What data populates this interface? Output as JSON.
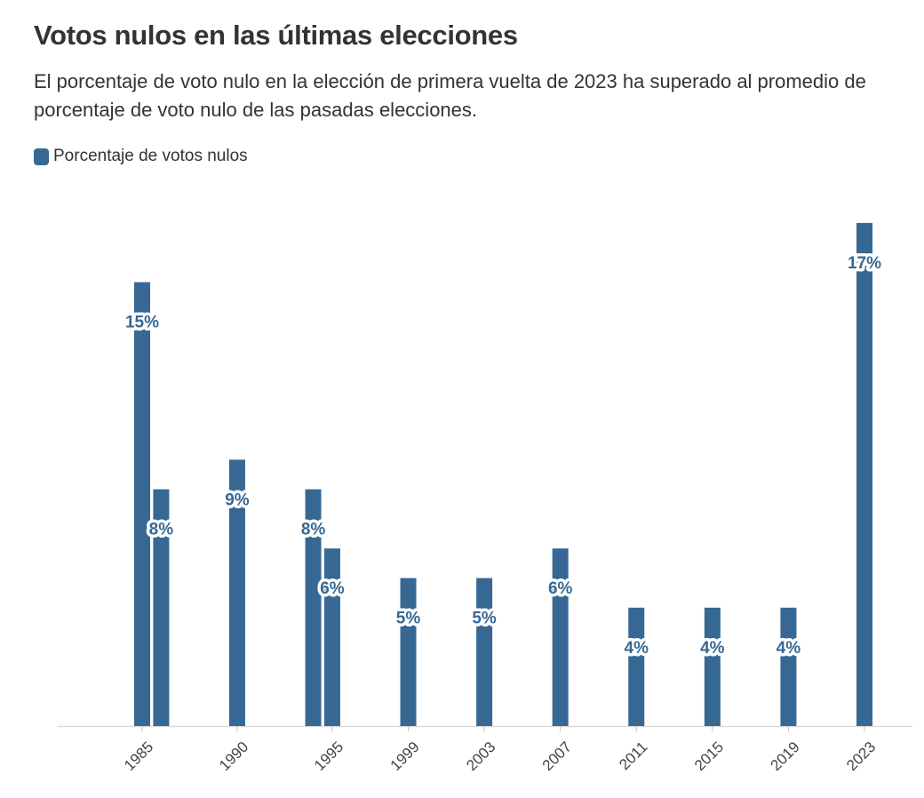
{
  "chart_data": {
    "type": "bar",
    "title": "Votos nulos en las últimas elecciones",
    "subtitle": "El porcentaje de voto nulo en la elección de primera vuelta de 2023 ha superado al promedio de porcentaje de voto nulo de las pasadas elecciones.",
    "legend": {
      "position": "top-left",
      "entries": [
        "Porcentaje de votos nulos"
      ]
    },
    "xlabel": "",
    "ylabel": "",
    "x_range": [
      1985,
      2023
    ],
    "ylim": [
      0,
      17
    ],
    "grid": false,
    "color": "#376893",
    "series": [
      {
        "name": "Porcentaje de votos nulos",
        "points": [
          {
            "x": 1985,
            "y": 15,
            "label": "15%"
          },
          {
            "x": 1986,
            "y": 8,
            "label": "8%"
          },
          {
            "x": 1990,
            "y": 9,
            "label": "9%"
          },
          {
            "x": 1994,
            "y": 8,
            "label": "8%"
          },
          {
            "x": 1995,
            "y": 6,
            "label": "6%"
          },
          {
            "x": 1999,
            "y": 5,
            "label": "5%"
          },
          {
            "x": 2003,
            "y": 5,
            "label": "5%"
          },
          {
            "x": 2007,
            "y": 6,
            "label": "6%"
          },
          {
            "x": 2011,
            "y": 4,
            "label": "4%"
          },
          {
            "x": 2015,
            "y": 4,
            "label": "4%"
          },
          {
            "x": 2019,
            "y": 4,
            "label": "4%"
          },
          {
            "x": 2023,
            "y": 17,
            "label": "17%"
          }
        ]
      }
    ],
    "x_ticks": [
      "1985",
      "1990",
      "1995",
      "1999",
      "2003",
      "2007",
      "2011",
      "2015",
      "2019",
      "2023"
    ]
  }
}
